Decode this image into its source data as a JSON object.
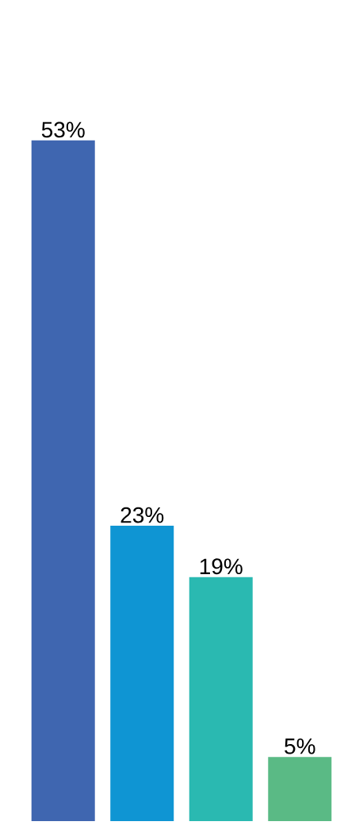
{
  "chart_data": {
    "type": "bar",
    "categories": [
      null,
      null,
      null,
      null
    ],
    "values": [
      53,
      23,
      19,
      5
    ],
    "colors": [
      "#3f66b0",
      "#0f95d3",
      "#2ab9b1",
      "#5aba85"
    ],
    "value_labels": [
      "53%",
      "23%",
      "19%",
      "5%"
    ]
  }
}
